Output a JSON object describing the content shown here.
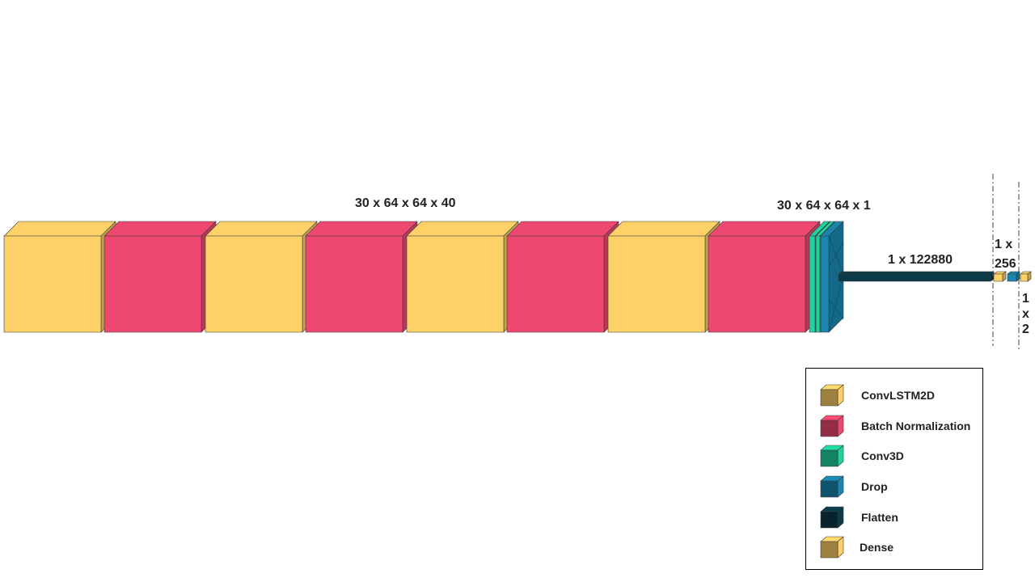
{
  "labels": {
    "main_shape": "30 x 64 x 64 x 40",
    "conv_shape": "30 x 64 x 64 x 1",
    "flatten_shape": "1 x 122880",
    "dense1_shape": "1 x 256",
    "dense2_shape": "1 x 2"
  },
  "colors": {
    "conv_lstm2d": "#FDD068",
    "batch_norm": "#EE4870",
    "conv3d": "#1FD3A0",
    "drop": "#1A86B0",
    "flatten": "#0B3A48",
    "dense": "#FDD068"
  },
  "legend": [
    {
      "name": "ConvLSTM2D",
      "icon": "cube-icon",
      "key": "conv_lstm2d"
    },
    {
      "name": "Batch Normalization",
      "icon": "cube-icon",
      "key": "batch_norm"
    },
    {
      "name": "Conv3D",
      "icon": "cube-icon",
      "key": "conv3d"
    },
    {
      "name": "Drop",
      "icon": "cube-icon",
      "key": "drop"
    },
    {
      "name": "Flatten",
      "icon": "cube-icon",
      "key": "flatten"
    },
    {
      "name": "Dense",
      "icon": "cube-icon",
      "key": "dense"
    }
  ]
}
